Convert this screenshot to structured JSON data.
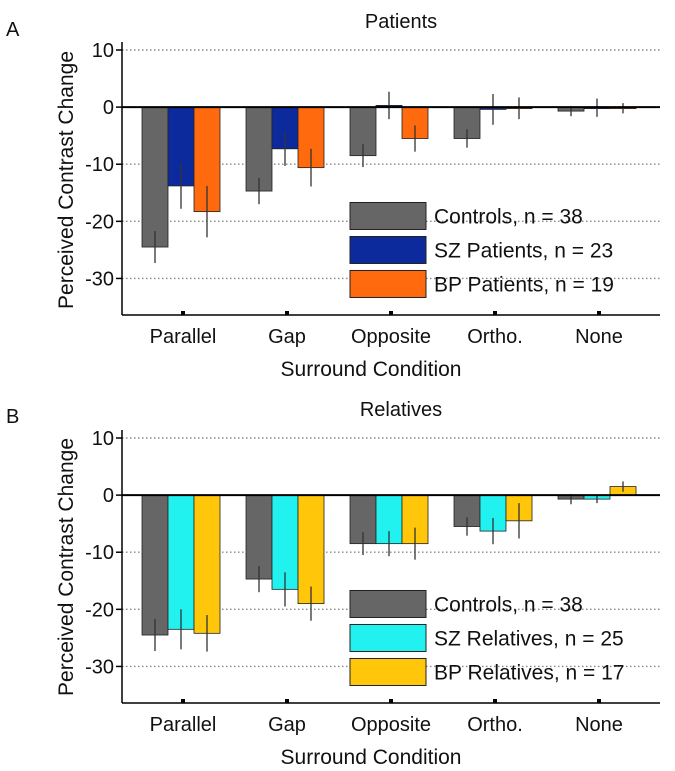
{
  "colors": {
    "controls": "#666666",
    "sz_patients": "#0d2a9c",
    "bp_patients": "#ff6a0e",
    "sz_relatives": "#22f2ef",
    "bp_relatives": "#ffc60a"
  },
  "chart_data": [
    {
      "type": "bar",
      "panel_label": "A",
      "title": "Patients",
      "xlabel": "Surround Condition",
      "ylabel": "Perceived Contrast Change",
      "categories": [
        "Parallel",
        "Gap",
        "Opposite",
        "Ortho.",
        "None"
      ],
      "ylim": [
        -35,
        10
      ],
      "yticks": [
        "10",
        "0",
        "-10",
        "-20",
        "-30"
      ],
      "grid": "dotted horizontal at each y tick",
      "legend_position": "bottom-right",
      "series": [
        {
          "name": "Controls, n = 38",
          "color": "#666666",
          "values": [
            -24.5,
            -14.7,
            -8.5,
            -5.5,
            -0.7
          ],
          "errors": [
            2.8,
            2.3,
            2.0,
            1.6,
            0.9
          ]
        },
        {
          "name": "SZ Patients, n = 23",
          "color": "#0d2a9c",
          "values": [
            -13.8,
            -7.3,
            0.3,
            -0.4,
            -0.1
          ],
          "errors": [
            4.0,
            3.0,
            2.4,
            2.7,
            1.6
          ]
        },
        {
          "name": "BP Patients, n = 19",
          "color": "#ff6a0e",
          "values": [
            -18.3,
            -10.6,
            -5.5,
            -0.2,
            -0.2
          ],
          "errors": [
            4.5,
            3.3,
            2.3,
            1.9,
            0.9
          ]
        }
      ]
    },
    {
      "type": "bar",
      "panel_label": "B",
      "title": "Relatives",
      "xlabel": "Surround Condition",
      "ylabel": "Perceived Contrast Change",
      "categories": [
        "Parallel",
        "Gap",
        "Opposite",
        "Ortho.",
        "None"
      ],
      "ylim": [
        -35,
        10
      ],
      "yticks": [
        "10",
        "0",
        "-10",
        "-20",
        "-30"
      ],
      "grid": "dotted horizontal at each y tick",
      "legend_position": "bottom-right",
      "series": [
        {
          "name": "Controls, n = 38",
          "color": "#666666",
          "values": [
            -24.5,
            -14.7,
            -8.5,
            -5.5,
            -0.7
          ],
          "errors": [
            2.8,
            2.3,
            2.0,
            1.6,
            0.9
          ]
        },
        {
          "name": "SZ Relatives, n = 25",
          "color": "#22f2ef",
          "values": [
            -23.5,
            -16.5,
            -8.5,
            -6.3,
            -0.7
          ],
          "errors": [
            3.5,
            3.0,
            2.2,
            2.3,
            0.7
          ]
        },
        {
          "name": "BP Relatives, n = 17",
          "color": "#ffc60a",
          "values": [
            -24.2,
            -19.0,
            -8.5,
            -4.5,
            1.5
          ],
          "errors": [
            3.2,
            3.0,
            2.8,
            3.1,
            0.9
          ]
        }
      ]
    }
  ]
}
